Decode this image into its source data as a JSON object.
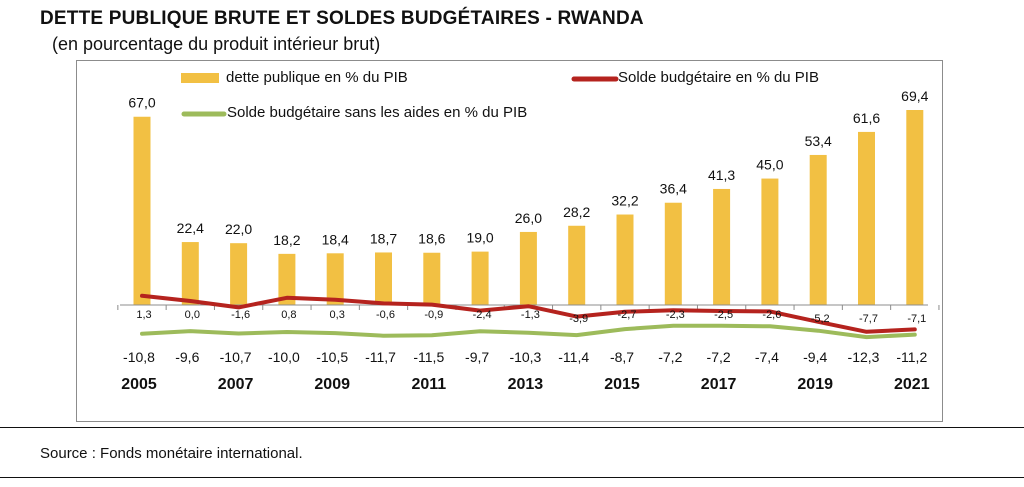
{
  "header": {
    "title": "DETTE PUBLIQUE BRUTE  ET SOLDES BUDGÉTAIRES - RWANDA",
    "subtitle": "(en pourcentage du produit intérieur brut)"
  },
  "footer": {
    "source": "Source : Fonds monétaire international."
  },
  "colors": {
    "debt": "#f2c043",
    "balance": "#b5231e",
    "balance_no_aid": "#9dbb5b"
  },
  "chart_data": {
    "type": "bar",
    "years": [
      "2005",
      "2006",
      "2007",
      "2008",
      "2009",
      "2010",
      "2011",
      "2012",
      "2013",
      "2014",
      "2015",
      "2016",
      "2017",
      "2018",
      "2019",
      "2020",
      "2021"
    ],
    "tick_labels": [
      "2005",
      "",
      "2007",
      "",
      "2009",
      "",
      "2011",
      "",
      "2013",
      "",
      "2015",
      "",
      "2017",
      "",
      "2019",
      "",
      "2021"
    ],
    "series": [
      {
        "name": "dette publique en % du PIB",
        "type": "bar",
        "values": [
          67.0,
          22.4,
          22.0,
          18.2,
          18.4,
          18.7,
          18.6,
          19.0,
          26.0,
          28.2,
          32.2,
          36.4,
          41.3,
          45.0,
          53.4,
          61.6,
          69.4
        ],
        "labels": [
          "67,0",
          "22,4",
          "22,0",
          "18,2",
          "18,4",
          "18,7",
          "18,6",
          "19,0",
          "26,0",
          "28,2",
          "32,2",
          "36,4",
          "41,3",
          "45,0",
          "53,4",
          "61,6",
          "69,4"
        ]
      },
      {
        "name": "Solde budgétaire  en % du PIB",
        "type": "line",
        "values": [
          1.3,
          0.0,
          -1.6,
          0.8,
          0.3,
          -0.6,
          -0.9,
          -2.4,
          -1.3,
          -3.9,
          -2.7,
          -2.3,
          -2.5,
          -2.6,
          -5.2,
          -7.7,
          -7.1
        ],
        "labels": [
          "1,3",
          "0,0",
          "-1,6",
          "0,8",
          "0,3",
          "-0,6",
          "-0,9",
          "-2,4",
          "-1,3",
          "-3,9",
          "-2,7",
          "-2,3",
          "-2,5",
          "-2,6",
          "-5,2",
          "-7,7",
          "-7,1"
        ]
      },
      {
        "name": "Solde budgétaire  sans les aides en % du PIB",
        "type": "line",
        "values": [
          -10.8,
          -9.6,
          -10.7,
          -10.0,
          -10.5,
          -11.7,
          -11.5,
          -9.7,
          -10.3,
          -11.4,
          -8.7,
          -7.2,
          -7.2,
          -7.4,
          -9.4,
          -12.3,
          -11.2
        ],
        "labels": [
          "-10,8",
          "-9,6",
          "-10,7",
          "-10,0",
          "-10,5",
          "-11,7",
          "-11,5",
          "-9,7",
          "-10,3",
          "-11,4",
          "-8,7",
          "-7,2",
          "-7,2",
          "-7,4",
          "-9,4",
          "-12,3",
          "-11,2"
        ]
      }
    ],
    "legend_position": "top",
    "grid": false
  }
}
